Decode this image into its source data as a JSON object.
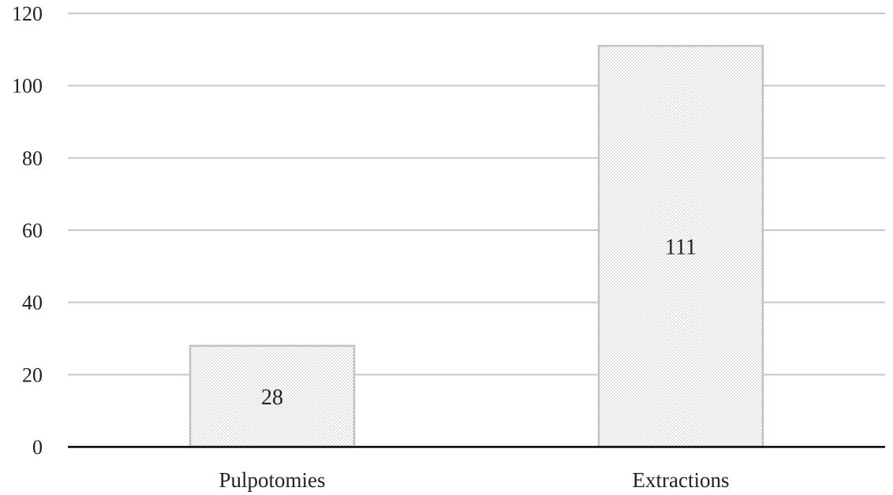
{
  "chart_data": {
    "type": "bar",
    "categories": [
      "Pulpotomies",
      "Extractions"
    ],
    "values": [
      28,
      111
    ],
    "data_labels": [
      "28",
      "111"
    ],
    "title": "",
    "xlabel": "",
    "ylabel": "",
    "ylim": [
      0,
      120
    ],
    "yticks": [
      0,
      20,
      40,
      60,
      80,
      100,
      120
    ],
    "grid": true,
    "legend": "none",
    "bar_fill": "dotted light gray",
    "colors": {
      "grid": "#c6c6c6",
      "bar_stroke": "#c2c2c2",
      "bar_dots": "#9a9a9a",
      "axis": "#000000",
      "text": "#222222"
    }
  }
}
